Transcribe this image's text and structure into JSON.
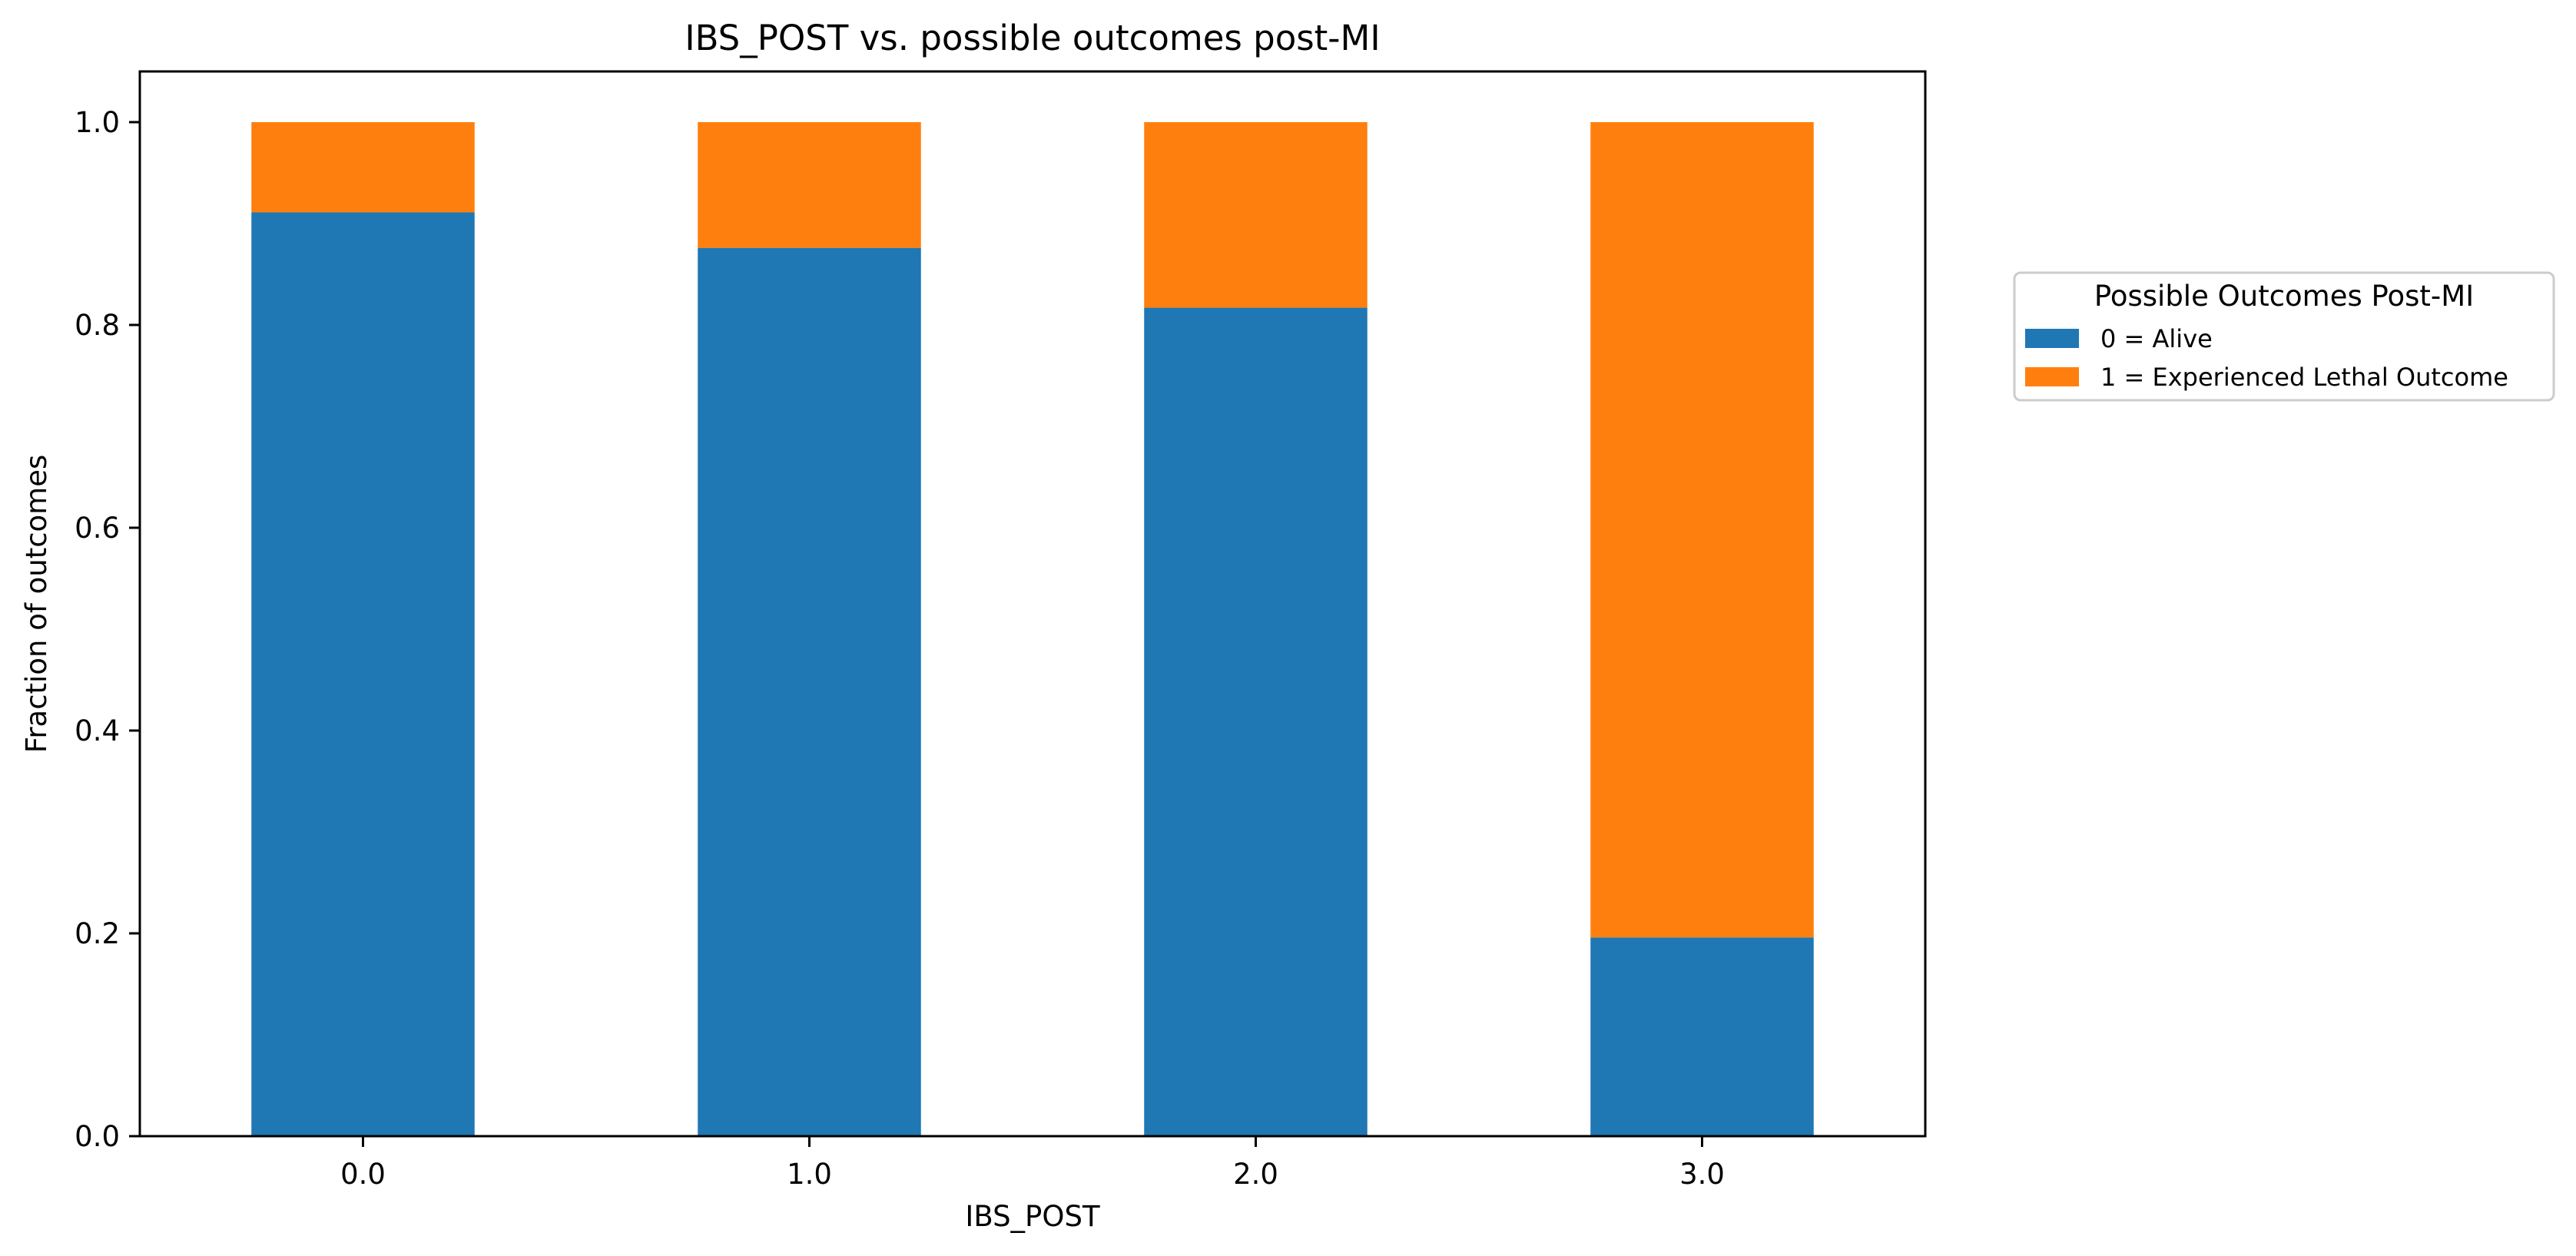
{
  "chart_data": {
    "type": "bar",
    "stacked": true,
    "title": "IBS_POST vs. possible outcomes post-MI",
    "xlabel": "IBS_POST",
    "ylabel": "Fraction of outcomes",
    "categories": [
      "0.0",
      "1.0",
      "2.0",
      "3.0"
    ],
    "ylim": [
      0,
      1.05
    ],
    "yticks": [
      "0.0",
      "0.2",
      "0.4",
      "0.6",
      "0.8",
      "1.0"
    ],
    "series": [
      {
        "name": "0 = Alive",
        "values": [
          0.911,
          0.876,
          0.817,
          0.196
        ],
        "color": "#1f77b4"
      },
      {
        "name": "1 = Experienced Lethal Outcome",
        "values": [
          0.089,
          0.124,
          0.183,
          0.804
        ],
        "color": "#ff7f0e"
      }
    ],
    "grid": false,
    "legend": {
      "title": "Possible Outcomes Post-MI",
      "placement": "outside-right"
    }
  }
}
